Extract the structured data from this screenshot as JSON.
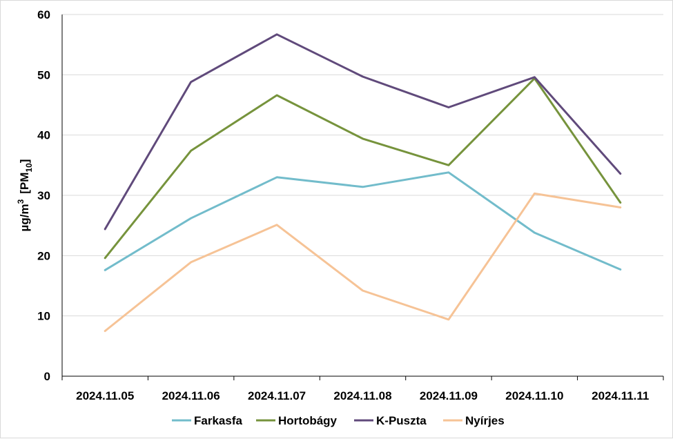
{
  "chart_data": {
    "type": "line",
    "ylabel": {
      "prefix": "µg/m",
      "sup": "3",
      "bracket_open": "[PM",
      "sub": "10",
      "bracket_close": "]"
    },
    "ylim": [
      0,
      60
    ],
    "yticks": [
      0,
      10,
      20,
      30,
      40,
      50,
      60
    ],
    "categories": [
      "2024.11.05",
      "2024.11.06",
      "2024.11.07",
      "2024.11.08",
      "2024.11.09",
      "2024.11.10",
      "2024.11.11"
    ],
    "grid": true,
    "legend_position": "bottom",
    "series": [
      {
        "name": "Farkasfa",
        "color": "#72BCCB",
        "values": [
          17.6,
          26.2,
          33.0,
          31.4,
          33.8,
          23.8,
          17.7
        ]
      },
      {
        "name": "Hortobágy",
        "color": "#76933C",
        "values": [
          19.6,
          37.4,
          46.6,
          39.4,
          35.0,
          49.4,
          28.8
        ]
      },
      {
        "name": "K-Puszta",
        "color": "#604A7B",
        "values": [
          24.4,
          48.8,
          56.7,
          49.7,
          44.6,
          49.6,
          33.6
        ]
      },
      {
        "name": "Nyírjes",
        "color": "#F6C396",
        "values": [
          7.5,
          18.9,
          25.1,
          14.2,
          9.4,
          30.3,
          28.0
        ]
      }
    ]
  }
}
